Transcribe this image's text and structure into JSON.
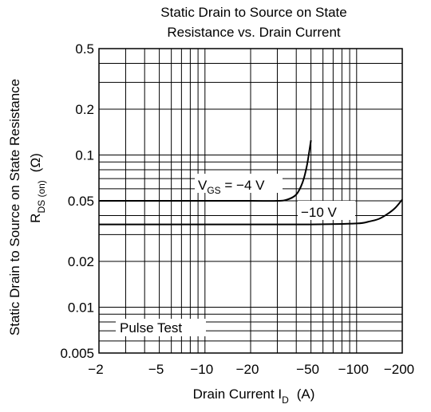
{
  "chart_data": {
    "type": "line",
    "title_lines": [
      "Static Drain to Source on State",
      "Resistance vs. Drain Current"
    ],
    "xlabel": {
      "main": "Drain Current  I",
      "sub": "D",
      "unit": "(A)"
    },
    "ylabel": {
      "line1": "Static Drain to Source on State Resistance",
      "main": "R",
      "sub": "DS (on)",
      "unit": "(Ω)"
    },
    "x_scale": "log",
    "y_scale": "log",
    "x_ticks": [
      {
        "value": 2,
        "label": "−2"
      },
      {
        "value": 5,
        "label": "−5"
      },
      {
        "value": 10,
        "label": "−10"
      },
      {
        "value": 20,
        "label": "−20"
      },
      {
        "value": 50,
        "label": "−50"
      },
      {
        "value": 100,
        "label": "−100"
      },
      {
        "value": 200,
        "label": "−200"
      }
    ],
    "y_ticks": [
      {
        "value": 0.005,
        "label": "0.005"
      },
      {
        "value": 0.01,
        "label": "0.01"
      },
      {
        "value": 0.02,
        "label": "0.02"
      },
      {
        "value": 0.05,
        "label": "0.05"
      },
      {
        "value": 0.1,
        "label": "0.1"
      },
      {
        "value": 0.2,
        "label": "0.2"
      },
      {
        "value": 0.5,
        "label": "0.5"
      }
    ],
    "xlim": [
      2,
      200
    ],
    "ylim": [
      0.005,
      0.5
    ],
    "grid": true,
    "series": [
      {
        "name": "VGS = −4 V",
        "label_main": "V",
        "label_sub": "GS",
        "label_rest": " = −4 V",
        "x": [
          2,
          5,
          10,
          20,
          30,
          35,
          40,
          44,
          47,
          50
        ],
        "y": [
          0.05,
          0.05,
          0.05,
          0.05,
          0.05,
          0.051,
          0.055,
          0.066,
          0.085,
          0.125
        ]
      },
      {
        "name": "−10 V",
        "label_main": "−10 V",
        "x": [
          2,
          10,
          50,
          100,
          120,
          140,
          160,
          180,
          200
        ],
        "y": [
          0.035,
          0.035,
          0.035,
          0.0355,
          0.0365,
          0.038,
          0.041,
          0.045,
          0.051
        ]
      }
    ],
    "annotations": [
      {
        "text": "Pulse Test"
      }
    ]
  }
}
